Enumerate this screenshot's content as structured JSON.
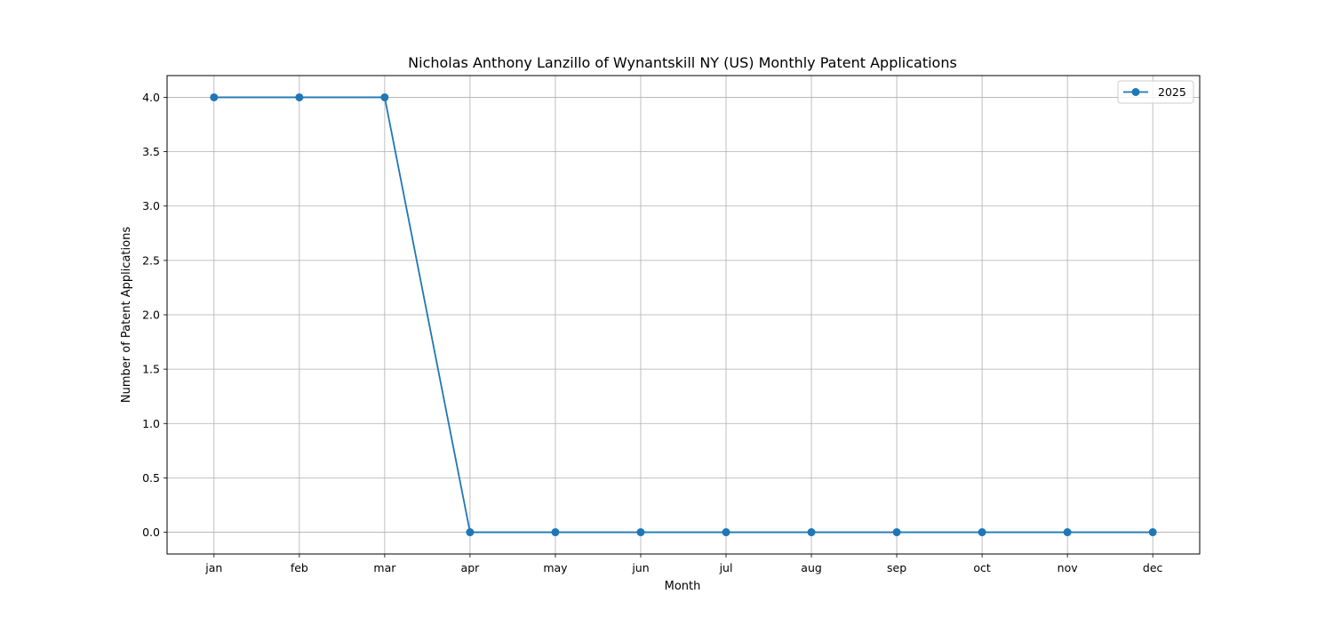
{
  "chart_data": {
    "type": "line",
    "title": "Nicholas Anthony Lanzillo of Wynantskill NY (US) Monthly Patent Applications",
    "xlabel": "Month",
    "ylabel": "Number of Patent Applications",
    "categories": [
      "jan",
      "feb",
      "mar",
      "apr",
      "may",
      "jun",
      "jul",
      "aug",
      "sep",
      "oct",
      "nov",
      "dec"
    ],
    "series": [
      {
        "name": "2025",
        "values": [
          4,
          4,
          4,
          0,
          0,
          0,
          0,
          0,
          0,
          0,
          0,
          0
        ],
        "color": "#1f77b4",
        "marker": "circle"
      }
    ],
    "ylim": [
      -0.2,
      4.2
    ],
    "yticks": [
      0.0,
      0.5,
      1.0,
      1.5,
      2.0,
      2.5,
      3.0,
      3.5,
      4.0
    ],
    "ytick_labels": [
      "0.0",
      "0.5",
      "1.0",
      "1.5",
      "2.0",
      "2.5",
      "3.0",
      "3.5",
      "4.0"
    ],
    "grid": true,
    "legend_position": "top-right"
  }
}
